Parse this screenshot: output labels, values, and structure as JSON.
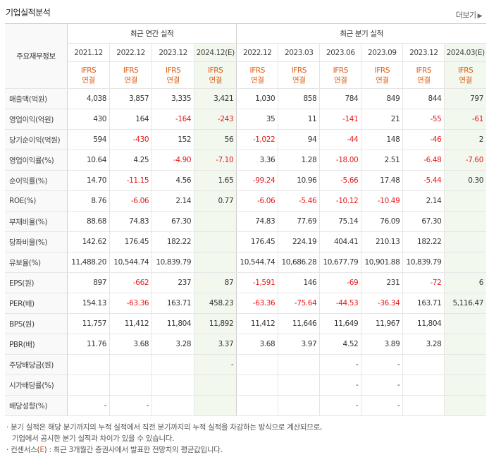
{
  "title": "기업실적분석",
  "more": "더보기",
  "header": {
    "corner": "주요재무정보",
    "annual_group": "최근 연간 실적",
    "quarter_group": "최근 분기 실적",
    "periods": [
      "2021.12",
      "2022.12",
      "2023.12",
      "2024.12(E)",
      "2022.12",
      "2023.03",
      "2023.06",
      "2023.09",
      "2023.12",
      "2024.03(E)"
    ],
    "basis_top": "IFRS",
    "basis_bottom": "연결"
  },
  "rows": [
    {
      "label": "매출액(억원)",
      "values": [
        "4,038",
        "3,857",
        "3,335",
        "3,421",
        "1,030",
        "858",
        "784",
        "849",
        "844",
        "797"
      ],
      "neg": [
        0,
        0,
        0,
        0,
        0,
        0,
        0,
        0,
        0,
        0
      ]
    },
    {
      "label": "영업이익(억원)",
      "values": [
        "430",
        "164",
        "-164",
        "-243",
        "35",
        "11",
        "-141",
        "21",
        "-55",
        "-61"
      ],
      "neg": [
        0,
        0,
        1,
        1,
        0,
        0,
        1,
        0,
        1,
        1
      ]
    },
    {
      "label": "당기순이익(억원)",
      "values": [
        "594",
        "-430",
        "152",
        "56",
        "-1,022",
        "94",
        "-44",
        "148",
        "-46",
        "2"
      ],
      "neg": [
        0,
        1,
        0,
        0,
        1,
        0,
        1,
        0,
        1,
        0
      ]
    },
    {
      "label": "영업이익률(%)",
      "values": [
        "10.64",
        "4.25",
        "-4.90",
        "-7.10",
        "3.36",
        "1.28",
        "-18.00",
        "2.51",
        "-6.48",
        "-7.60"
      ],
      "neg": [
        0,
        0,
        1,
        1,
        0,
        0,
        1,
        0,
        1,
        1
      ]
    },
    {
      "label": "순이익률(%)",
      "values": [
        "14.70",
        "-11.15",
        "4.56",
        "1.65",
        "-99.24",
        "10.96",
        "-5.66",
        "17.48",
        "-5.44",
        "0.30"
      ],
      "neg": [
        0,
        1,
        0,
        0,
        1,
        0,
        1,
        0,
        1,
        0
      ]
    },
    {
      "label": "ROE(%)",
      "values": [
        "8.76",
        "-6.06",
        "2.14",
        "0.77",
        "-6.06",
        "-5.46",
        "-10.12",
        "-10.49",
        "2.14",
        ""
      ],
      "neg": [
        0,
        1,
        0,
        0,
        1,
        1,
        1,
        1,
        0,
        0
      ]
    },
    {
      "label": "부채비율(%)",
      "values": [
        "88.68",
        "74.83",
        "67.30",
        "",
        "74.83",
        "77.69",
        "75.14",
        "76.09",
        "67.30",
        ""
      ],
      "neg": [
        0,
        0,
        0,
        0,
        0,
        0,
        0,
        0,
        0,
        0
      ]
    },
    {
      "label": "당좌비율(%)",
      "values": [
        "142.62",
        "176.45",
        "182.22",
        "",
        "176.45",
        "224.19",
        "404.41",
        "210.13",
        "182.22",
        ""
      ],
      "neg": [
        0,
        0,
        0,
        0,
        0,
        0,
        0,
        0,
        0,
        0
      ]
    },
    {
      "label": "유보율(%)",
      "values": [
        "11,488.20",
        "10,544.74",
        "10,839.79",
        "",
        "10,544.74",
        "10,686.28",
        "10,677.79",
        "10,901.88",
        "10,839.79",
        ""
      ],
      "neg": [
        0,
        0,
        0,
        0,
        0,
        0,
        0,
        0,
        0,
        0
      ]
    },
    {
      "label": "EPS(원)",
      "values": [
        "897",
        "-662",
        "237",
        "87",
        "-1,591",
        "146",
        "-69",
        "231",
        "-72",
        "6"
      ],
      "neg": [
        0,
        1,
        0,
        0,
        1,
        0,
        1,
        0,
        1,
        0
      ]
    },
    {
      "label": "PER(배)",
      "values": [
        "154.13",
        "-63.36",
        "163.71",
        "458.23",
        "-63.36",
        "-75.64",
        "-44.53",
        "-36.34",
        "163.71",
        "5,116.47"
      ],
      "neg": [
        0,
        1,
        0,
        0,
        1,
        1,
        1,
        1,
        0,
        0
      ]
    },
    {
      "label": "BPS(원)",
      "values": [
        "11,757",
        "11,412",
        "11,804",
        "11,892",
        "11,412",
        "11,646",
        "11,649",
        "11,967",
        "11,804",
        ""
      ],
      "neg": [
        0,
        0,
        0,
        0,
        0,
        0,
        0,
        0,
        0,
        0
      ]
    },
    {
      "label": "PBR(배)",
      "values": [
        "11.76",
        "3.68",
        "3.28",
        "3.37",
        "3.68",
        "3.97",
        "4.52",
        "3.89",
        "3.28",
        ""
      ],
      "neg": [
        0,
        0,
        0,
        0,
        0,
        0,
        0,
        0,
        0,
        0
      ]
    },
    {
      "label": "주당배당금(원)",
      "values": [
        "",
        "",
        "",
        "-",
        "",
        "",
        "-",
        "-",
        "",
        ""
      ],
      "neg": [
        0,
        0,
        0,
        0,
        0,
        0,
        0,
        0,
        0,
        0
      ]
    },
    {
      "label": "시가배당률(%)",
      "values": [
        "",
        "",
        "",
        "",
        "",
        "",
        "-",
        "-",
        "",
        ""
      ],
      "neg": [
        0,
        0,
        0,
        0,
        0,
        0,
        0,
        0,
        0,
        0
      ]
    },
    {
      "label": "배당성향(%)",
      "values": [
        "-",
        "-",
        "",
        "",
        "",
        "",
        "-",
        "-",
        "",
        ""
      ],
      "neg": [
        0,
        0,
        0,
        0,
        0,
        0,
        0,
        0,
        0,
        0
      ]
    }
  ],
  "notes": {
    "line1": "· 분기 실적은 해당 분기까지의 누적 실적에서 직전 분기까지의 누적 실적을 차감하는 방식으로 계산되므로,",
    "line2": "기업에서 공시한 분기 실적과 차이가 있을 수 있습니다.",
    "line3_prefix": "· 컨센서스(",
    "line3_e": "E",
    "line3_suffix": ") : 최근 3개월간 증권사에서 발표한 전망치의 평균값입니다."
  },
  "colors": {
    "negative": "#e41a1c",
    "accent": "#e35b10",
    "estimate_bg": "#f2f8ee"
  }
}
